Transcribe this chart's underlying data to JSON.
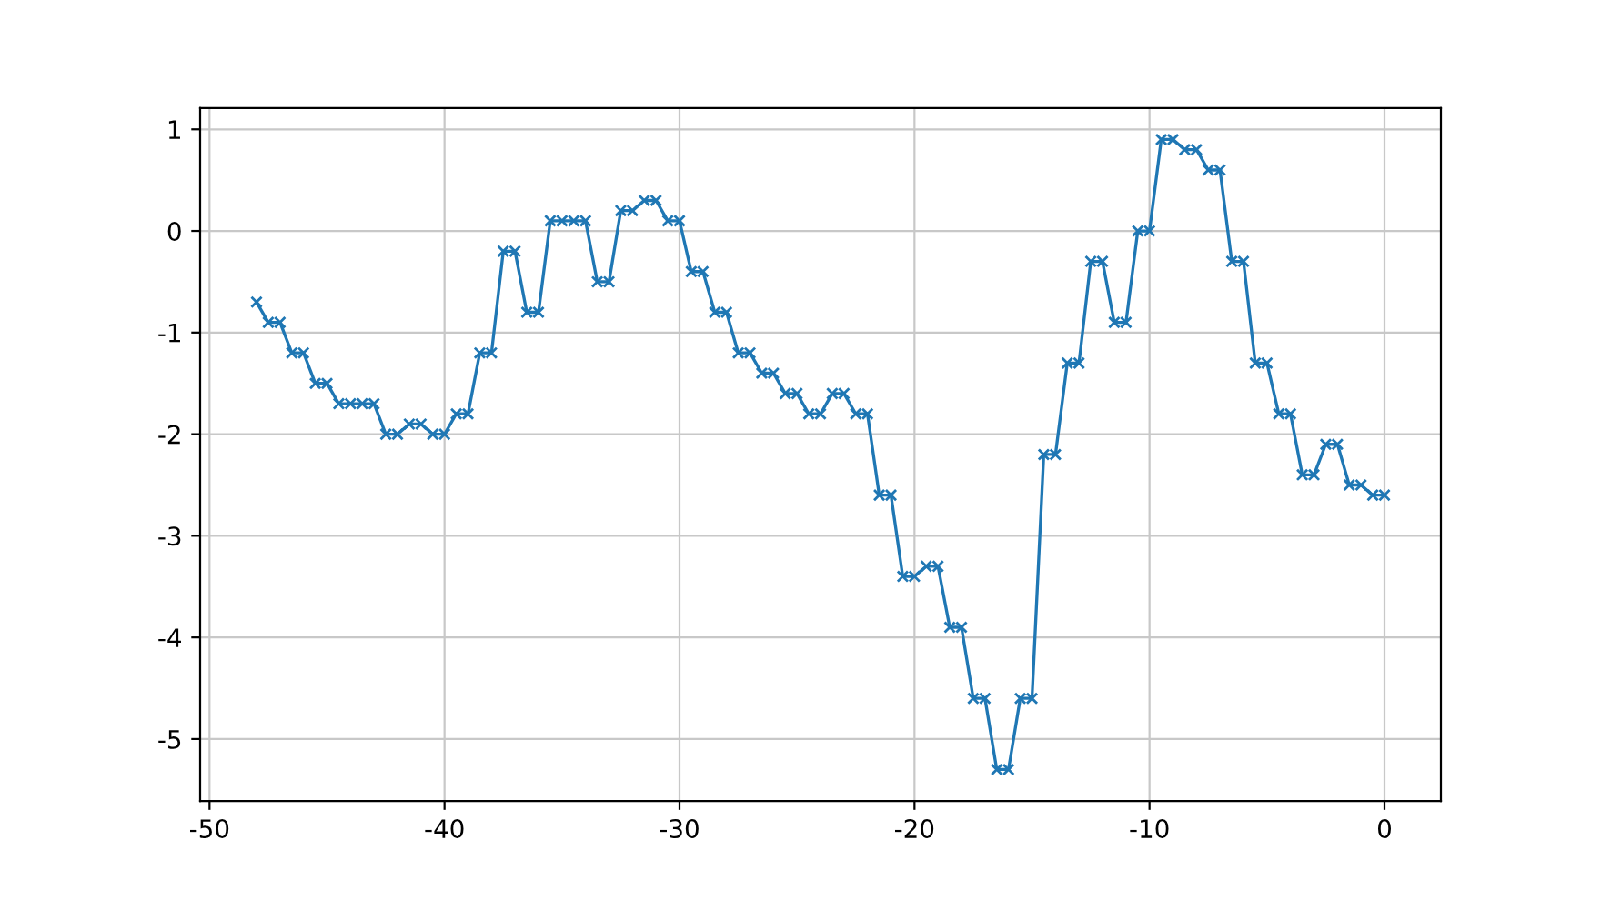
{
  "chart_data": {
    "type": "line",
    "marker": "cross",
    "line_style": "solid",
    "grid": true,
    "xlim": [
      -50.4,
      2.4
    ],
    "xticks": [
      -50,
      -40,
      -30,
      -20,
      -10,
      0
    ],
    "ylim": [
      -5.61,
      1.21
    ],
    "yticks": [
      -5,
      -4,
      -3,
      -2,
      -1,
      0,
      1
    ],
    "x": [
      -48,
      -47.5,
      -47,
      -46.5,
      -46,
      -45.5,
      -45,
      -44.5,
      -44,
      -43.5,
      -43,
      -42.5,
      -42,
      -41.5,
      -41,
      -40.5,
      -40,
      -39.5,
      -39,
      -38.5,
      -38,
      -37.5,
      -37,
      -36.5,
      -36,
      -35.5,
      -35,
      -34.5,
      -34,
      -33.5,
      -33,
      -32.5,
      -32,
      -31.5,
      -31,
      -30.5,
      -30,
      -29.5,
      -29,
      -28.5,
      -28,
      -27.5,
      -27,
      -26.5,
      -26,
      -25.5,
      -25,
      -24.5,
      -24,
      -23.5,
      -23,
      -22.5,
      -22,
      -21.5,
      -21,
      -20.5,
      -20,
      -19.5,
      -19,
      -18.5,
      -18,
      -17.5,
      -17,
      -16.5,
      -16,
      -15.5,
      -15,
      -14.5,
      -14,
      -13.5,
      -13,
      -12.5,
      -12,
      -11.5,
      -11,
      -10.5,
      -10,
      -9.5,
      -9,
      -8.5,
      -8,
      -7.5,
      -7,
      -6.5,
      -6,
      -5.5,
      -5,
      -4.5,
      -4,
      -3.5,
      -3,
      -2.5,
      -2,
      -1.5,
      -1,
      -0.5,
      0
    ],
    "series": [
      {
        "color": "#1f77b4",
        "values": [
          -0.7,
          -0.9,
          -0.9,
          -1.2,
          -1.2,
          -1.5,
          -1.5,
          -1.7,
          -1.7,
          -1.7,
          -1.7,
          -2.0,
          -2.0,
          -1.9,
          -1.9,
          -2.0,
          -2.0,
          -1.8,
          -1.8,
          -1.2,
          -1.2,
          -0.2,
          -0.2,
          -0.8,
          -0.8,
          0.1,
          0.1,
          0.1,
          0.1,
          -0.5,
          -0.5,
          0.2,
          0.2,
          0.3,
          0.3,
          0.1,
          0.1,
          -0.4,
          -0.4,
          -0.8,
          -0.8,
          -1.2,
          -1.2,
          -1.4,
          -1.4,
          -1.6,
          -1.6,
          -1.8,
          -1.8,
          -1.6,
          -1.6,
          -1.8,
          -1.8,
          -2.6,
          -2.6,
          -3.4,
          -3.4,
          -3.3,
          -3.3,
          -3.9,
          -3.9,
          -4.6,
          -4.6,
          -5.3,
          -5.3,
          -4.6,
          -4.6,
          -2.2,
          -2.2,
          -1.3,
          -1.3,
          -0.3,
          -0.3,
          -0.9,
          -0.9,
          0.0,
          0.0,
          0.9,
          0.9,
          0.8,
          0.8,
          0.6,
          0.6,
          -0.3,
          -0.3,
          -1.3,
          -1.3,
          -1.8,
          -1.8,
          -2.4,
          -2.4,
          -2.1,
          -2.1,
          -2.5,
          -2.5,
          -2.6,
          -2.6
        ]
      }
    ]
  }
}
